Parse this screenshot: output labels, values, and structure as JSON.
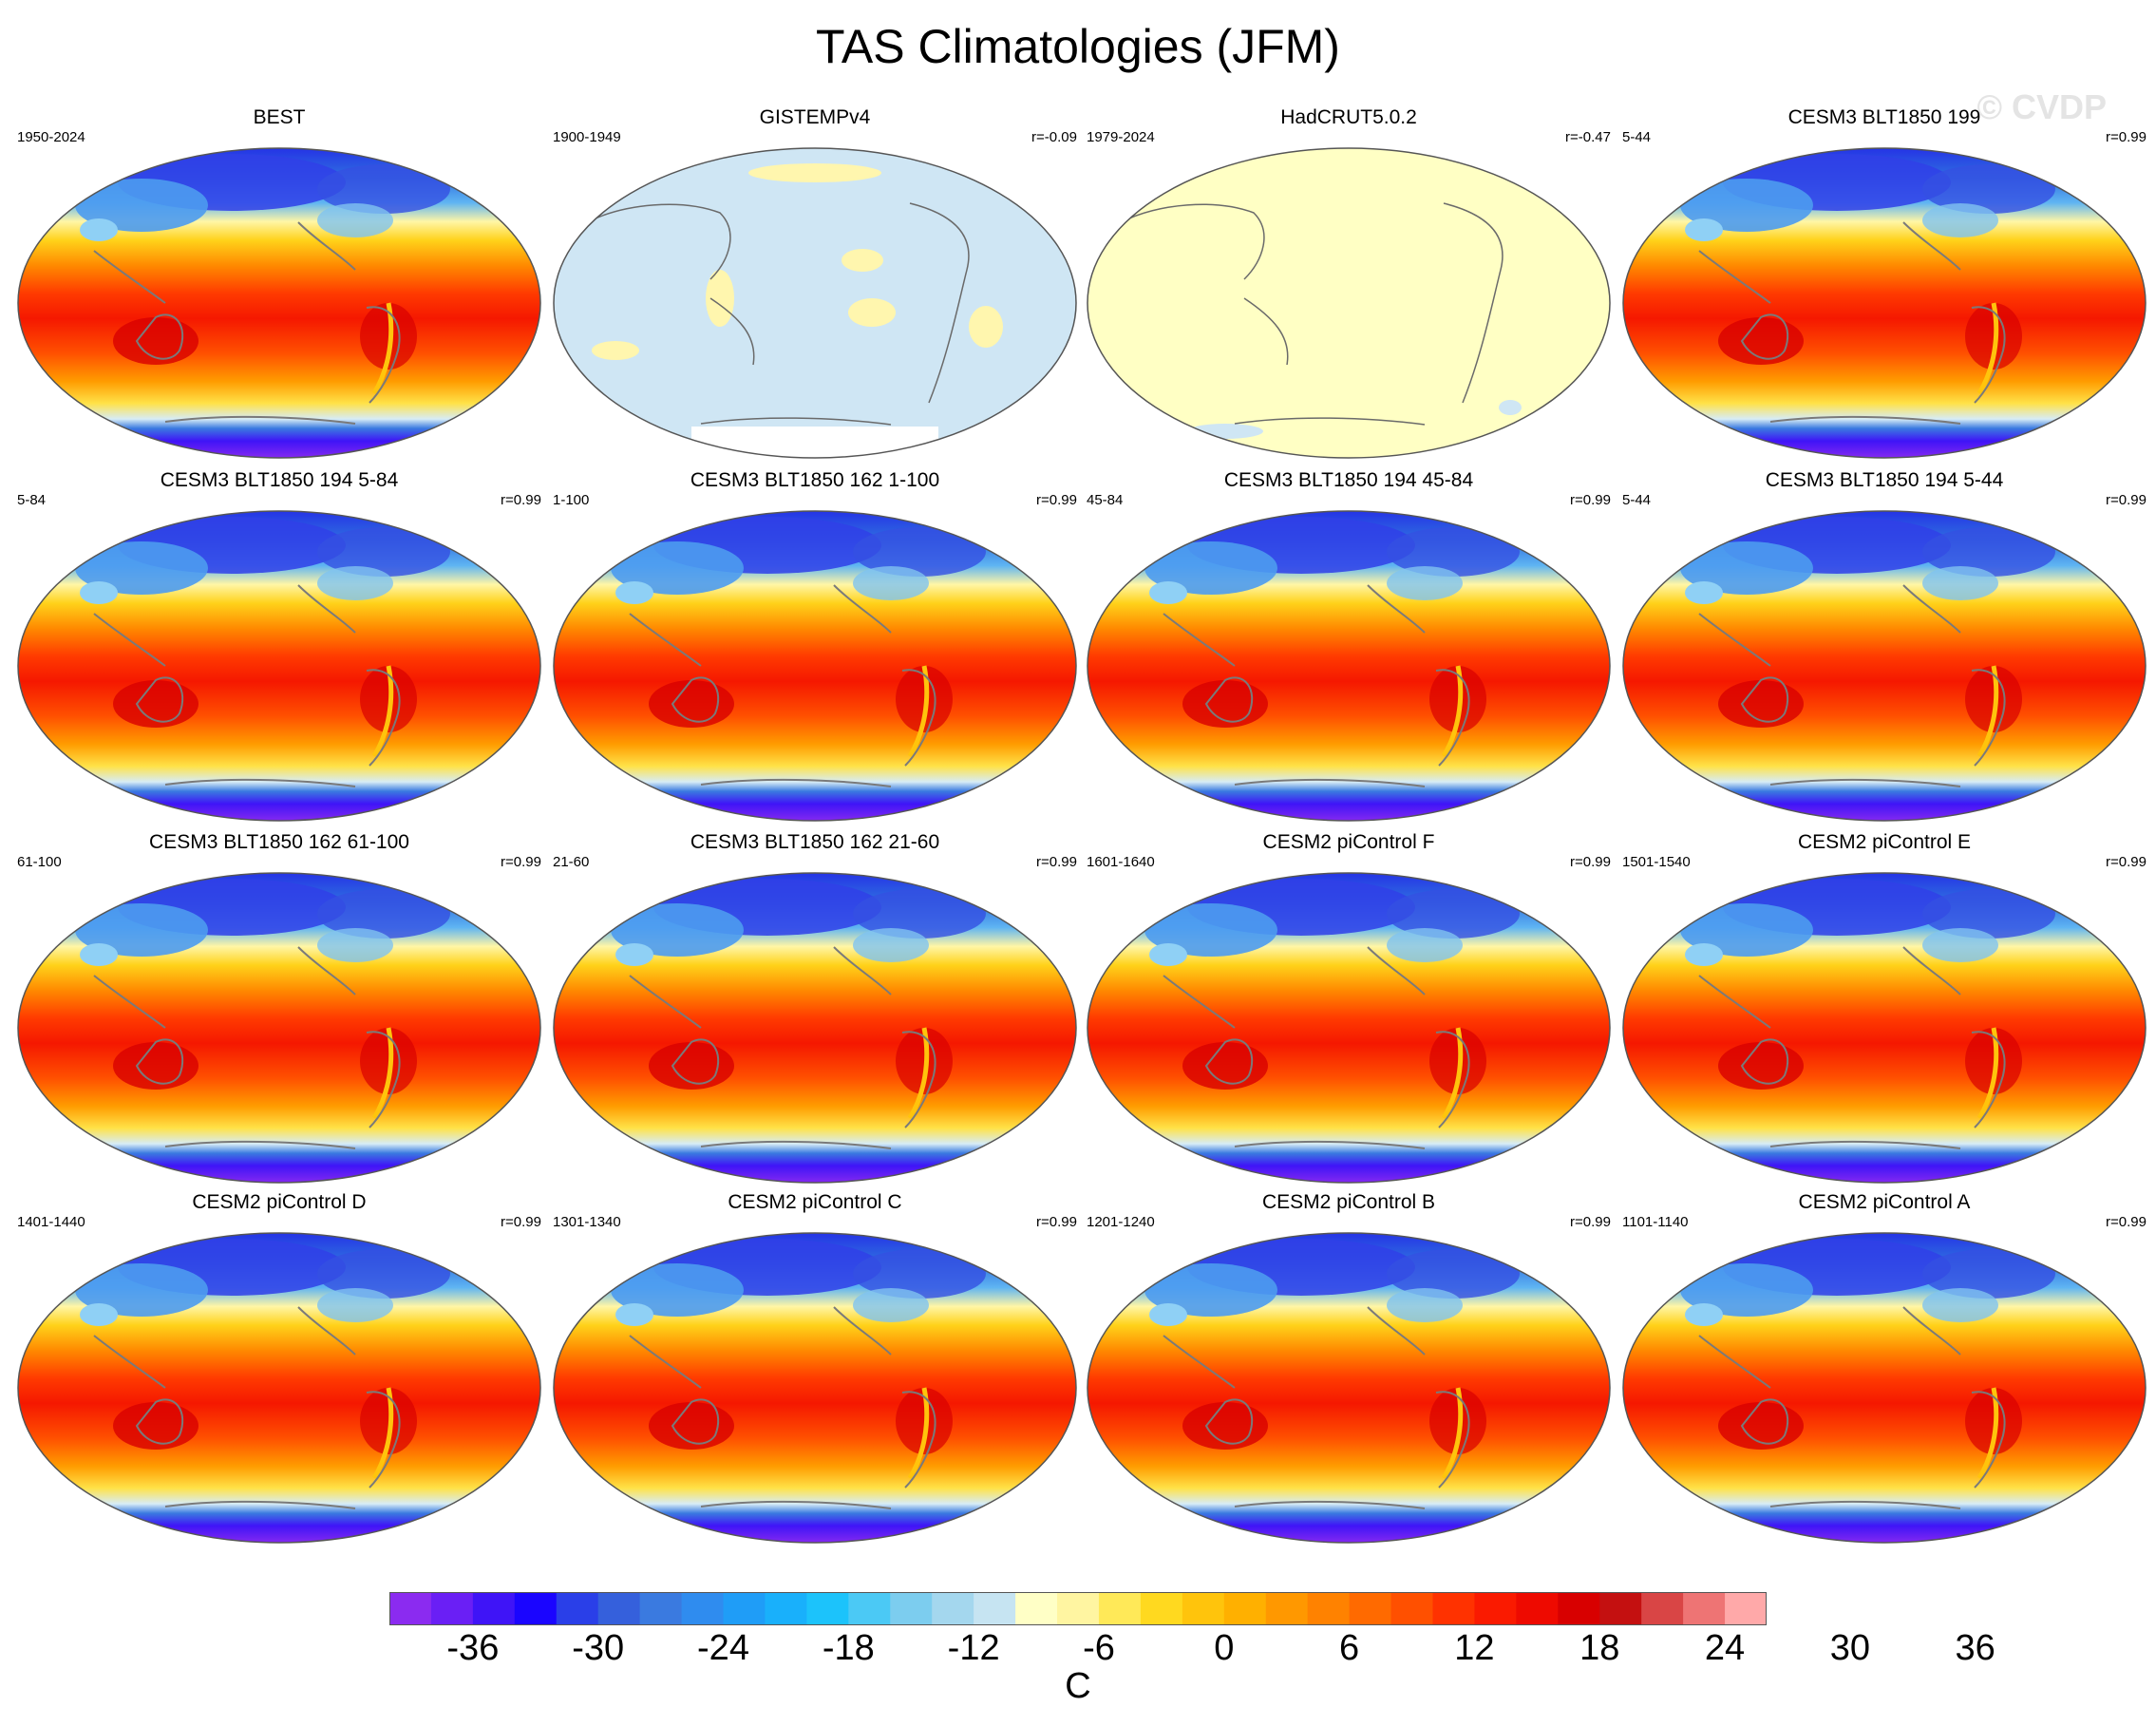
{
  "title": "TAS Climatologies (JFM)",
  "watermark": "© CVDP",
  "panels": [
    {
      "title": "BEST",
      "period": "1950-2024",
      "corr": "",
      "style": "warm"
    },
    {
      "title": "GISTEMPv4",
      "period": "1900-1949",
      "corr": "r=-0.09",
      "style": "blue"
    },
    {
      "title": "HadCRUT5.0.2",
      "period": "1979-2024",
      "corr": "r=-0.47",
      "style": "yellow"
    },
    {
      "title": "CESM3 BLT1850 199",
      "period": "5-44",
      "corr": "r=0.99",
      "style": "warm"
    },
    {
      "title": "CESM3 BLT1850 194 5-84",
      "period": "5-84",
      "corr": "r=0.99",
      "style": "warm"
    },
    {
      "title": "CESM3 BLT1850 162 1-100",
      "period": "1-100",
      "corr": "r=0.99",
      "style": "warm"
    },
    {
      "title": "CESM3 BLT1850 194 45-84",
      "period": "45-84",
      "corr": "r=0.99",
      "style": "warm"
    },
    {
      "title": "CESM3 BLT1850 194 5-44",
      "period": "5-44",
      "corr": "r=0.99",
      "style": "warm"
    },
    {
      "title": "CESM3 BLT1850 162 61-100",
      "period": "61-100",
      "corr": "r=0.99",
      "style": "warm"
    },
    {
      "title": "CESM3 BLT1850 162 21-60",
      "period": "21-60",
      "corr": "r=0.99",
      "style": "warm"
    },
    {
      "title": "CESM2 piControl F",
      "period": "1601-1640",
      "corr": "r=0.99",
      "style": "warm"
    },
    {
      "title": "CESM2 piControl E",
      "period": "1501-1540",
      "corr": "r=0.99",
      "style": "warm"
    },
    {
      "title": "CESM2 piControl D",
      "period": "1401-1440",
      "corr": "r=0.99",
      "style": "warm"
    },
    {
      "title": "CESM2 piControl C",
      "period": "1301-1340",
      "corr": "r=0.99",
      "style": "warm"
    },
    {
      "title": "CESM2 piControl B",
      "period": "1201-1240",
      "corr": "r=0.99",
      "style": "warm"
    },
    {
      "title": "CESM2 piControl A",
      "period": "1101-1140",
      "corr": "r=0.99",
      "style": "warm"
    }
  ],
  "colorbar": {
    "label": "C",
    "ticks": [
      "-36",
      "-30",
      "-24",
      "-18",
      "-12",
      "-6",
      "0",
      "6",
      "12",
      "18",
      "24",
      "30",
      "36"
    ],
    "colors": [
      "#8b2bf0",
      "#6a1ff5",
      "#3f14f7",
      "#1a05ff",
      "#2a3fe8",
      "#3560dc",
      "#3a7ae0",
      "#2f8cef",
      "#1f9df7",
      "#19b0fb",
      "#1cc3fb",
      "#4bc9f5",
      "#7ccdef",
      "#a4d7ee",
      "#c6e4f2",
      "#ffffc6",
      "#fff5a1",
      "#ffe958",
      "#ffd91f",
      "#ffc40c",
      "#ffb000",
      "#ff9800",
      "#ff8200",
      "#ff6a00",
      "#ff5000",
      "#ff3200",
      "#fa1a00",
      "#ee0a00",
      "#d80000",
      "#c41010",
      "#d94545",
      "#ee7474",
      "#ffa9a9"
    ]
  }
}
